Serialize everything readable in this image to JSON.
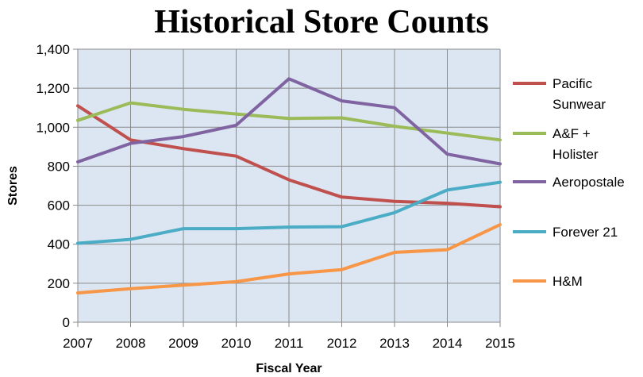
{
  "chart_data": {
    "type": "line",
    "title": "Historical Store Counts",
    "xlabel": "Fiscal Year",
    "ylabel": "Stores",
    "x": [
      "2007",
      "2008",
      "2009",
      "2010",
      "2011",
      "2012",
      "2013",
      "2014",
      "2015"
    ],
    "ylim": [
      0,
      1400
    ],
    "yticks": [
      0,
      200,
      400,
      600,
      800,
      1000,
      1200,
      1400
    ],
    "ytick_labels": [
      "0",
      "200",
      "400",
      "600",
      "800",
      "1,000",
      "1,200",
      "1,400"
    ],
    "grid": true,
    "legend_position": "right",
    "background": "#dce6f2",
    "series": [
      {
        "name": "Pacific Sunwear",
        "legend_lines": [
          "Pacific",
          "Sunwear"
        ],
        "color": "#c0504d",
        "values": [
          1110,
          935,
          890,
          852,
          730,
          642,
          620,
          610,
          592
        ]
      },
      {
        "name": "A&F + Holister",
        "legend_lines": [
          "A&F +",
          "Holister"
        ],
        "color": "#9bbb59",
        "values": [
          1035,
          1125,
          1092,
          1068,
          1045,
          1048,
          1005,
          970,
          935
        ]
      },
      {
        "name": "Aeropostale",
        "legend_lines": [
          "Aeropostale"
        ],
        "color": "#8064a2",
        "values": [
          822,
          917,
          952,
          1010,
          1248,
          1135,
          1100,
          862,
          812
        ]
      },
      {
        "name": "Forever 21",
        "legend_lines": [
          "Forever 21"
        ],
        "color": "#4bacc6",
        "values": [
          405,
          425,
          480,
          480,
          488,
          490,
          562,
          678,
          718
        ]
      },
      {
        "name": "H&M",
        "legend_lines": [
          "H&M"
        ],
        "color": "#f79646",
        "values": [
          150,
          172,
          190,
          208,
          248,
          270,
          358,
          372,
          500
        ]
      }
    ]
  }
}
